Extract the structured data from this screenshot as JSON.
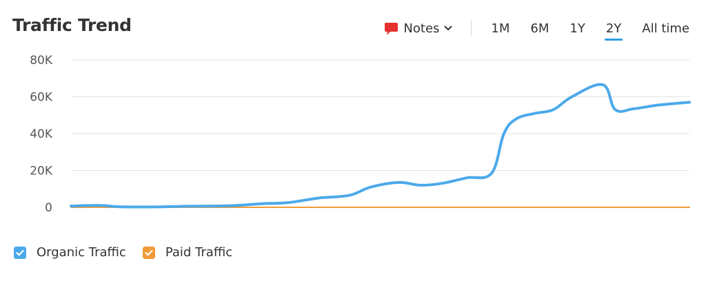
{
  "header": {
    "title": "Traffic Trend",
    "notes_label": "Notes",
    "ranges": [
      "1M",
      "6M",
      "1Y",
      "2Y",
      "All time"
    ],
    "active_range": "2Y"
  },
  "legend": [
    {
      "label": "Organic Traffic",
      "color": "#4ba9ea",
      "checked": true
    },
    {
      "label": "Paid Traffic",
      "color": "#f29a38",
      "checked": true
    }
  ],
  "icons": {
    "notes": "speech-bubble-icon",
    "dropdown": "chevron-down-icon",
    "legend_check": "checkbox-checked-icon"
  },
  "colors": {
    "accent": "#2e9ee6",
    "notes_icon": "#e5312e",
    "organic": "#4ba9ea",
    "paid": "#f29a38",
    "grid": "#e3e3e3"
  },
  "chart_data": {
    "type": "line",
    "title": "Traffic Trend",
    "ylim": [
      0,
      80000
    ],
    "y_ticks": [
      0,
      20000,
      40000,
      60000,
      80000
    ],
    "y_tick_labels": [
      "0",
      "20K",
      "40K",
      "60K",
      "80K"
    ],
    "grid": true,
    "legend_position": "bottom-left",
    "x_range": [
      0,
      100
    ],
    "series": [
      {
        "name": "Organic Traffic",
        "color": "#4ba9ea",
        "x": [
          0,
          4.5,
          8,
          13,
          19,
          26,
          31,
          35,
          40,
          45,
          48.5,
          53,
          56.5,
          60,
          64,
          68,
          70,
          72,
          75,
          78,
          81,
          86,
          88,
          91,
          95,
          100
        ],
        "y": [
          700,
          1000,
          300,
          200,
          600,
          900,
          2000,
          2500,
          5000,
          6500,
          11000,
          13500,
          12000,
          13000,
          16000,
          18500,
          40000,
          48000,
          51000,
          53000,
          60000,
          66500,
          53000,
          53500,
          55500,
          57000
        ]
      },
      {
        "name": "Paid Traffic",
        "color": "#f29a38",
        "x": [
          0,
          100
        ],
        "y": [
          0,
          0
        ]
      }
    ]
  }
}
